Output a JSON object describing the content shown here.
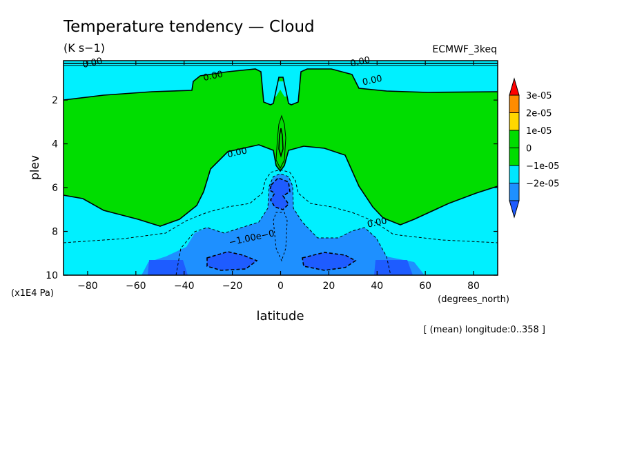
{
  "chart_data": {
    "type": "heatmap",
    "title": "Temperature tendency — Cloud",
    "units": "(K s−1)",
    "dataset": "ECMWF_3keq",
    "xlabel": "latitude",
    "xunits": "(degrees_north)",
    "ylabel": "plev",
    "yunits": "(x1E4 Pa)",
    "footnote": "[ (mean) longitude:0..358 ]",
    "xlim": [
      -90,
      90
    ],
    "ylim": [
      0.2,
      10
    ],
    "y_inverted": true,
    "x_ticks": [
      -80,
      -60,
      -40,
      -20,
      0,
      20,
      40,
      60,
      80
    ],
    "x_tick_labels": [
      "−80",
      "−60",
      "−40",
      "−20",
      "0",
      "20",
      "40",
      "60",
      "80"
    ],
    "y_ticks": [
      2,
      4,
      6,
      8,
      10
    ],
    "y_tick_labels": [
      "2",
      "4",
      "6",
      "8",
      "10"
    ],
    "levels": [
      {
        "label": "3e-05",
        "color": "#ff8c00"
      },
      {
        "label": "2e-05",
        "color": "#ffd700"
      },
      {
        "label": "1e-05",
        "color": "#00dd00"
      },
      {
        "label": "0",
        "color": "#00dd00"
      },
      {
        "label": "−1e-05",
        "color": "#00e6ff"
      },
      {
        "label": "−2e-05",
        "color": "#1e90ff"
      }
    ],
    "colorbar_ends": {
      "top": "#ff0000",
      "bottom": "#1e5cff"
    },
    "fill_colors": {
      "positive": "#00dd00",
      "neg_1": "#00f0ff",
      "neg_2": "#1e90ff",
      "neg_3": "#1e5cff",
      "positive_peak": "#00dd00"
    },
    "contour_labels": [
      {
        "text": "0.00",
        "lat": -28,
        "plev": 0.9
      },
      {
        "text": "0.00",
        "lat": -18,
        "plev": 4.4
      },
      {
        "text": "0.00",
        "lat": 40,
        "plev": 7.6
      },
      {
        "text": "0.00",
        "lat": 38,
        "plev": 1.1
      },
      {
        "text": "0.00",
        "lat": -78,
        "plev": 0.3
      },
      {
        "text": "0.00",
        "lat": 33,
        "plev": 0.25
      },
      {
        "text": "−1.00e−0",
        "lat": -12,
        "plev": 8.3
      }
    ]
  }
}
